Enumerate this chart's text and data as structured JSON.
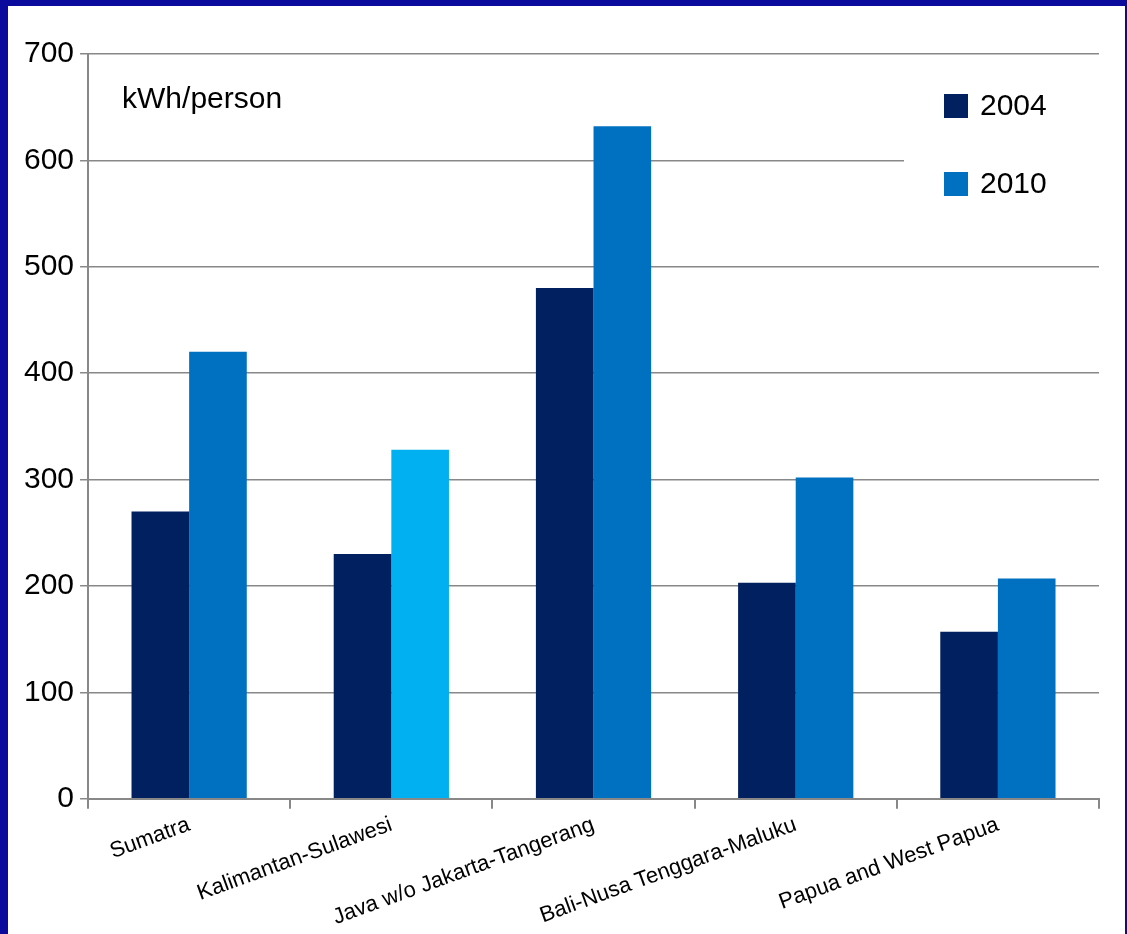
{
  "chart_data": {
    "type": "bar",
    "ylabel": "kWh/person",
    "categories": [
      "Sumatra",
      "Kalimantan-Sulawesi",
      "Java w/o Jakarta-Tangerang",
      "Bali-Nusa Tenggara-Maluku",
      "Papua and West Papua"
    ],
    "series": [
      {
        "name": "2004",
        "color": "#002060",
        "values": [
          270,
          230,
          480,
          203,
          157
        ]
      },
      {
        "name": "2010",
        "color": "#0070c0",
        "colors": [
          "#0070c0",
          "#00b0f0",
          "#0070c0",
          "#0070c0",
          "#0070c0"
        ],
        "values": [
          420,
          328,
          632,
          302,
          207
        ]
      }
    ],
    "ylim": [
      0,
      700
    ],
    "yticks": [
      0,
      100,
      200,
      300,
      400,
      500,
      600,
      700
    ],
    "grid": "y",
    "legend": "top right"
  }
}
